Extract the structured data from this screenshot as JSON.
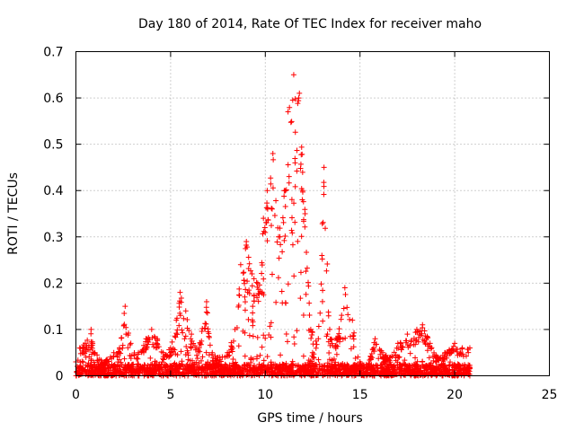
{
  "chart_data": {
    "type": "scatter",
    "title": "Day 180 of 2014, Rate Of TEC Index for receiver maho",
    "xlabel": "GPS time / hours",
    "ylabel": "ROTI / TECUs",
    "xlim": [
      0,
      25
    ],
    "ylim": [
      0,
      0.7
    ],
    "xticks": [
      0,
      5,
      10,
      15,
      20,
      25
    ],
    "xtick_labels": [
      "0",
      "5",
      "10",
      "15",
      "20",
      "25"
    ],
    "yticks": [
      0,
      0.1,
      0.2,
      0.3,
      0.4,
      0.5,
      0.6,
      0.7
    ],
    "ytick_labels": [
      "0",
      "0.1",
      "0.2",
      "0.3",
      "0.4",
      "0.5",
      "0.6",
      "0.7"
    ],
    "grid": true,
    "marker": "+",
    "series_color": "#ff0000",
    "envelope_note": "approximate per-time upper envelope of ROTI values read from plot",
    "envelope": [
      [
        0.0,
        0.03
      ],
      [
        0.2,
        0.06
      ],
      [
        0.5,
        0.07
      ],
      [
        0.8,
        0.1
      ],
      [
        1.0,
        0.05
      ],
      [
        1.5,
        0.03
      ],
      [
        2.0,
        0.05
      ],
      [
        2.3,
        0.06
      ],
      [
        2.6,
        0.15
      ],
      [
        2.9,
        0.07
      ],
      [
        3.3,
        0.05
      ],
      [
        3.7,
        0.08
      ],
      [
        4.0,
        0.1
      ],
      [
        4.3,
        0.08
      ],
      [
        4.6,
        0.05
      ],
      [
        5.0,
        0.06
      ],
      [
        5.3,
        0.12
      ],
      [
        5.5,
        0.18
      ],
      [
        5.8,
        0.14
      ],
      [
        6.1,
        0.09
      ],
      [
        6.5,
        0.06
      ],
      [
        6.9,
        0.16
      ],
      [
        7.2,
        0.05
      ],
      [
        7.6,
        0.04
      ],
      [
        8.0,
        0.05
      ],
      [
        8.4,
        0.1
      ],
      [
        8.7,
        0.24
      ],
      [
        9.0,
        0.29
      ],
      [
        9.3,
        0.22
      ],
      [
        9.6,
        0.2
      ],
      [
        9.9,
        0.34
      ],
      [
        10.1,
        0.4
      ],
      [
        10.4,
        0.48
      ],
      [
        10.7,
        0.3
      ],
      [
        11.0,
        0.4
      ],
      [
        11.2,
        0.57
      ],
      [
        11.5,
        0.65
      ],
      [
        11.8,
        0.61
      ],
      [
        12.1,
        0.35
      ],
      [
        12.4,
        0.1
      ],
      [
        12.8,
        0.08
      ],
      [
        13.1,
        0.45
      ],
      [
        13.4,
        0.1
      ],
      [
        13.8,
        0.08
      ],
      [
        14.2,
        0.19
      ],
      [
        14.6,
        0.12
      ],
      [
        15.0,
        0.03
      ],
      [
        15.4,
        0.02
      ],
      [
        15.8,
        0.08
      ],
      [
        16.2,
        0.05
      ],
      [
        16.6,
        0.04
      ],
      [
        17.0,
        0.07
      ],
      [
        17.5,
        0.09
      ],
      [
        18.0,
        0.1
      ],
      [
        18.3,
        0.11
      ],
      [
        18.7,
        0.07
      ],
      [
        19.1,
        0.04
      ],
      [
        19.5,
        0.05
      ],
      [
        20.0,
        0.07
      ],
      [
        20.4,
        0.06
      ],
      [
        20.8,
        0.06
      ]
    ]
  }
}
